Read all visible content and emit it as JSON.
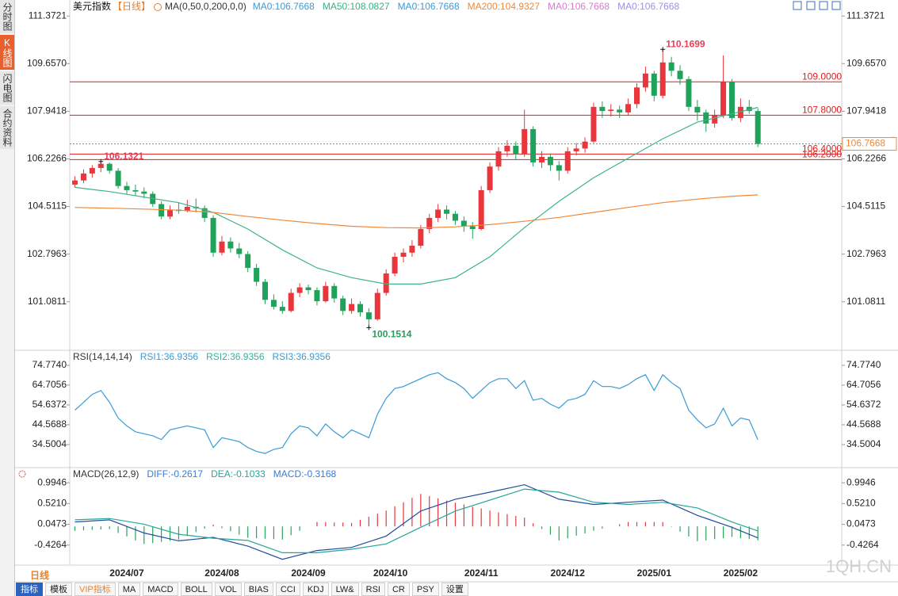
{
  "sidebar": {
    "tabs": [
      "分时图",
      "K线图",
      "闪电图",
      "合约资料"
    ]
  },
  "chart_data": [
    {
      "type": "candlestick",
      "title": "美元指数",
      "period": "【日线】",
      "indicator": "MA(0,50,0,200,0,0)",
      "legend": [
        {
          "text": "MA0:106.7668",
          "color": "#3a9bd5"
        },
        {
          "text": "MA50:108.0827",
          "color": "#36b37e"
        },
        {
          "text": "MA0:106.7668",
          "color": "#3a9bd5"
        },
        {
          "text": "MA200:104.9327",
          "color": "#f0883a"
        },
        {
          "text": "MA0:106.7668",
          "color": "#d87ad0"
        },
        {
          "text": "MA0:106.7668",
          "color": "#9d8fe6"
        }
      ],
      "xlim": [
        -0.6,
        88.7
      ],
      "ylim": [
        99.39,
        111.72
      ],
      "yticks": [
        111.3721,
        {
          "value": 109.657,
          "label": "109.6570"
        },
        107.9418,
        106.2266,
        104.5115,
        102.7963,
        101.0811
      ],
      "up_color": "#e8363c",
      "down_color": "#1fa35b",
      "candles": [
        [
          105.3,
          105.6,
          105.2,
          105.45
        ],
        [
          105.45,
          105.85,
          105.35,
          105.7
        ],
        [
          105.7,
          106.0,
          105.55,
          105.9
        ],
        [
          105.9,
          106.1321,
          105.75,
          106.05
        ],
        [
          106.05,
          106.1,
          105.7,
          105.8
        ],
        [
          105.8,
          105.9,
          105.15,
          105.25
        ],
        [
          105.25,
          105.4,
          104.95,
          105.1
        ],
        [
          105.1,
          105.3,
          104.9,
          105.05
        ],
        [
          105.05,
          105.2,
          104.8,
          104.97
        ],
        [
          104.97,
          105.05,
          104.5,
          104.6
        ],
        [
          104.6,
          104.7,
          104.05,
          104.15
        ],
        [
          104.15,
          104.55,
          104.05,
          104.4
        ],
        [
          104.4,
          104.65,
          104.25,
          104.35
        ],
        [
          104.35,
          104.75,
          104.3,
          104.5
        ],
        [
          104.5,
          104.8,
          104.3,
          104.45
        ],
        [
          104.45,
          104.55,
          103.95,
          104.1
        ],
        [
          104.1,
          104.2,
          102.7,
          102.85
        ],
        [
          102.85,
          103.45,
          102.75,
          103.25
        ],
        [
          103.25,
          103.4,
          102.85,
          103.0
        ],
        [
          103.0,
          103.2,
          102.65,
          102.8
        ],
        [
          102.8,
          102.9,
          102.15,
          102.3
        ],
        [
          102.3,
          102.45,
          101.65,
          101.8
        ],
        [
          101.8,
          101.9,
          101.0,
          101.15
        ],
        [
          101.15,
          101.35,
          100.8,
          100.9
        ],
        [
          100.9,
          101.1,
          100.65,
          100.75
        ],
        [
          100.75,
          101.55,
          100.7,
          101.4
        ],
        [
          101.4,
          101.75,
          101.25,
          101.6
        ],
        [
          101.6,
          101.7,
          101.35,
          101.5
        ],
        [
          101.5,
          101.6,
          100.95,
          101.1
        ],
        [
          101.1,
          101.8,
          101.05,
          101.65
        ],
        [
          101.65,
          101.75,
          101.05,
          101.2
        ],
        [
          101.2,
          101.3,
          100.6,
          100.75
        ],
        [
          100.75,
          101.2,
          100.65,
          101.0
        ],
        [
          101.0,
          101.1,
          100.55,
          100.7
        ],
        [
          100.7,
          100.85,
          100.1514,
          100.45
        ],
        [
          100.45,
          101.55,
          100.4,
          101.4
        ],
        [
          101.4,
          102.25,
          101.3,
          102.1
        ],
        [
          102.1,
          102.85,
          102.0,
          102.7
        ],
        [
          102.7,
          103.0,
          102.5,
          102.85
        ],
        [
          102.85,
          103.3,
          102.7,
          103.1
        ],
        [
          103.1,
          103.85,
          103.0,
          103.7
        ],
        [
          103.7,
          104.25,
          103.55,
          104.1
        ],
        [
          104.1,
          104.6,
          103.95,
          104.4
        ],
        [
          104.4,
          104.55,
          104.05,
          104.25
        ],
        [
          104.25,
          104.35,
          103.85,
          104.0
        ],
        [
          104.0,
          104.15,
          103.6,
          103.8
        ],
        [
          103.8,
          103.95,
          103.35,
          103.7
        ],
        [
          103.7,
          105.25,
          103.65,
          105.1
        ],
        [
          105.1,
          106.1,
          105.0,
          105.95
        ],
        [
          105.95,
          106.65,
          105.8,
          106.5
        ],
        [
          106.5,
          106.9,
          106.3,
          106.7
        ],
        [
          106.7,
          106.85,
          106.2,
          106.4
        ],
        [
          106.4,
          108.0,
          106.3,
          107.3
        ],
        [
          107.3,
          107.4,
          105.95,
          106.1
        ],
        [
          106.1,
          106.5,
          105.9,
          106.3
        ],
        [
          106.3,
          106.4,
          105.8,
          106.0
        ],
        [
          106.0,
          106.15,
          105.45,
          105.8
        ],
        [
          105.8,
          106.65,
          105.7,
          106.5
        ],
        [
          106.5,
          106.8,
          106.35,
          106.6
        ],
        [
          106.6,
          107.0,
          106.45,
          106.85
        ],
        [
          106.85,
          108.25,
          106.8,
          108.1
        ],
        [
          108.1,
          108.3,
          107.7,
          107.95
        ],
        [
          107.95,
          108.2,
          107.75,
          108.0
        ],
        [
          108.0,
          108.15,
          107.7,
          107.9
        ],
        [
          107.9,
          108.4,
          107.8,
          108.2
        ],
        [
          108.2,
          108.95,
          108.05,
          108.8
        ],
        [
          108.8,
          109.55,
          108.65,
          109.3
        ],
        [
          109.3,
          109.4,
          108.3,
          108.5
        ],
        [
          108.5,
          110.1699,
          108.4,
          109.7
        ],
        [
          109.7,
          109.9,
          109.2,
          109.4
        ],
        [
          109.4,
          109.6,
          108.9,
          109.1
        ],
        [
          109.1,
          109.2,
          107.95,
          108.1
        ],
        [
          108.1,
          108.35,
          107.6,
          107.9
        ],
        [
          107.9,
          108.0,
          107.2,
          107.5
        ],
        [
          107.5,
          108.0,
          107.35,
          107.8
        ],
        [
          107.8,
          109.95,
          107.7,
          109.0
        ],
        [
          109.0,
          109.1,
          107.6,
          107.7
        ],
        [
          107.7,
          108.4,
          107.55,
          108.1
        ],
        [
          108.1,
          108.35,
          107.85,
          107.95
        ],
        [
          107.95,
          108.05,
          106.65,
          106.7668
        ]
      ],
      "series": [
        {
          "color": "#3cb48a",
          "x": [
            0,
            4,
            8,
            12,
            16,
            20,
            24,
            28,
            32,
            36,
            40,
            44,
            48,
            52,
            56,
            60,
            64,
            68,
            72,
            76,
            79
          ],
          "values": [
            105.2,
            105.05,
            104.85,
            104.65,
            104.3,
            103.7,
            102.95,
            102.3,
            101.95,
            101.72,
            101.72,
            101.95,
            102.7,
            103.75,
            104.7,
            105.55,
            106.25,
            106.95,
            107.55,
            107.85,
            108.08
          ]
        },
        {
          "color": "#f0883a",
          "x": [
            0,
            4,
            8,
            12,
            16,
            20,
            24,
            28,
            32,
            36,
            40,
            44,
            48,
            52,
            56,
            60,
            64,
            68,
            72,
            76,
            79
          ],
          "values": [
            104.48,
            104.45,
            104.42,
            104.38,
            104.3,
            104.15,
            104.02,
            103.9,
            103.8,
            103.75,
            103.74,
            103.78,
            103.86,
            103.98,
            104.12,
            104.3,
            104.48,
            104.65,
            104.78,
            104.88,
            104.93
          ]
        }
      ],
      "hlines": [
        {
          "value": 109,
          "label": "109.0000"
        },
        {
          "value": 107.8,
          "label": "107.8000"
        },
        {
          "value": 106.4,
          "label": "106.4000"
        },
        {
          "value": 106.2,
          "label": "106.2000"
        }
      ],
      "hline_color": "#e01e1e",
      "last": 106.7668,
      "last_color": "#f0883a",
      "annotations": [
        {
          "x": 68,
          "value": 110.1699,
          "color": "#e8405a"
        },
        {
          "x": 34,
          "value": 100.1514,
          "color": "#2a9d5c"
        },
        {
          "x": 3,
          "value": 106.1321,
          "color": "#e8405a"
        }
      ]
    },
    {
      "type": "line",
      "legend": [
        {
          "text": "RSI(14,14,14)",
          "color": "#333333"
        },
        {
          "text": "RSI1:36.9356",
          "color": "#3a9bd5"
        },
        {
          "text": "RSI2:36.9356",
          "color": "#2fb3a0"
        },
        {
          "text": "RSI3:36.9356",
          "color": "#3a9bd5"
        }
      ],
      "xlim": [
        -0.6,
        88.7
      ],
      "ylim": [
        23.6,
        81.2
      ],
      "yticks": [
        {
          "value": 74.774,
          "label": "74.7740"
        },
        64.7056,
        54.6372,
        44.5688,
        34.5004
      ],
      "series": [
        {
          "color": "#3a9bd5",
          "values": [
            52,
            56,
            60,
            62,
            56,
            48,
            44,
            41,
            40,
            39,
            37,
            42,
            43,
            44,
            43,
            42,
            33,
            38,
            37,
            36,
            33,
            31,
            30,
            32,
            33,
            40,
            44,
            43,
            39,
            45,
            41,
            38,
            42,
            40,
            38,
            50,
            58,
            63,
            64,
            66,
            68,
            70,
            71,
            68,
            66,
            63,
            58,
            62,
            66,
            68,
            68,
            63,
            67,
            57,
            58,
            55,
            53,
            57,
            58,
            60,
            67,
            64,
            64,
            63,
            65,
            68,
            70,
            62,
            70,
            66,
            63,
            52,
            47,
            43,
            45,
            53,
            44,
            48,
            47,
            37
          ]
        }
      ]
    },
    {
      "type": "macd",
      "legend": [
        {
          "text": "MACD(26,12,9)",
          "color": "#333333"
        },
        {
          "text": "DIFF:-0.2617",
          "color": "#3a7bd5"
        },
        {
          "text": "DEA:-0.1033",
          "color": "#26a69a"
        },
        {
          "text": "MACD:-0.3168",
          "color": "#3a7bd5"
        }
      ],
      "xlim": [
        -0.6,
        88.7
      ],
      "ylim": [
        -0.864,
        1.25
      ],
      "yticks": [
        0.9946,
        {
          "value": 0.521,
          "label": "0.5210"
        },
        0.0473,
        -0.4264
      ],
      "xticks": [
        {
          "value": 6,
          "label": "2024/07"
        },
        {
          "value": 17,
          "label": "2024/08"
        },
        {
          "value": 27,
          "label": "2024/09"
        },
        {
          "value": 36.5,
          "label": "2024/10"
        },
        {
          "value": 47,
          "label": "2024/11"
        },
        {
          "value": 57,
          "label": "2024/12"
        },
        {
          "value": 67,
          "label": "2025/01"
        },
        {
          "value": 77,
          "label": "2025/02"
        }
      ],
      "series": [
        {
          "color": "#1f4e9c",
          "x": [
            0,
            4,
            8,
            12,
            16,
            20,
            24,
            28,
            32,
            36,
            40,
            44,
            48,
            52,
            56,
            60,
            64,
            68,
            72,
            76,
            79
          ],
          "values": [
            0.1,
            0.15,
            -0.15,
            -0.33,
            -0.25,
            -0.45,
            -0.75,
            -0.55,
            -0.48,
            -0.22,
            0.35,
            0.62,
            0.78,
            0.95,
            0.62,
            0.5,
            0.55,
            0.6,
            0.25,
            -0.02,
            -0.2617
          ]
        },
        {
          "color": "#26a69a",
          "x": [
            0,
            4,
            8,
            12,
            16,
            20,
            24,
            28,
            32,
            36,
            40,
            44,
            48,
            52,
            56,
            60,
            64,
            68,
            72,
            76,
            79
          ],
          "values": [
            0.15,
            0.18,
            0.05,
            -0.18,
            -0.27,
            -0.32,
            -0.6,
            -0.6,
            -0.52,
            -0.4,
            -0.02,
            0.35,
            0.6,
            0.85,
            0.78,
            0.55,
            0.5,
            0.55,
            0.42,
            0.1,
            -0.1033
          ]
        }
      ],
      "histogram": [
        -0.1,
        -0.09,
        -0.08,
        -0.07,
        -0.06,
        -0.15,
        -0.23,
        -0.32,
        -0.4,
        -0.38,
        -0.35,
        -0.33,
        -0.3,
        -0.22,
        -0.13,
        -0.05,
        0.04,
        -0.04,
        -0.11,
        -0.19,
        -0.26,
        -0.27,
        -0.28,
        -0.29,
        -0.3,
        -0.2,
        -0.1,
        0.0,
        0.1,
        0.1,
        0.09,
        0.09,
        0.08,
        0.15,
        0.22,
        0.29,
        0.36,
        0.46,
        0.55,
        0.65,
        0.74,
        0.69,
        0.64,
        0.59,
        0.54,
        0.5,
        0.45,
        0.41,
        0.36,
        0.32,
        0.28,
        0.24,
        0.2,
        0.07,
        -0.06,
        -0.19,
        -0.32,
        -0.27,
        -0.21,
        -0.16,
        -0.1,
        -0.05,
        0.0,
        0.05,
        0.1,
        0.1,
        0.1,
        0.1,
        0.1,
        -0.01,
        -0.12,
        -0.23,
        -0.34,
        -0.32,
        -0.29,
        -0.27,
        -0.24,
        -0.27,
        -0.29,
        -0.3168
      ],
      "up_color": "#e8363c",
      "down_color": "#27a35a"
    }
  ],
  "toolbar": {
    "period": "日线",
    "tabs": [
      "指标",
      "模板",
      "VIP指标",
      "MA",
      "MACD",
      "BOLL",
      "VOL",
      "BIAS",
      "CCI",
      "KDJ",
      "LW&",
      "RSI",
      "CR",
      "PSY",
      "设置"
    ]
  },
  "watermark": "1QH.CN"
}
